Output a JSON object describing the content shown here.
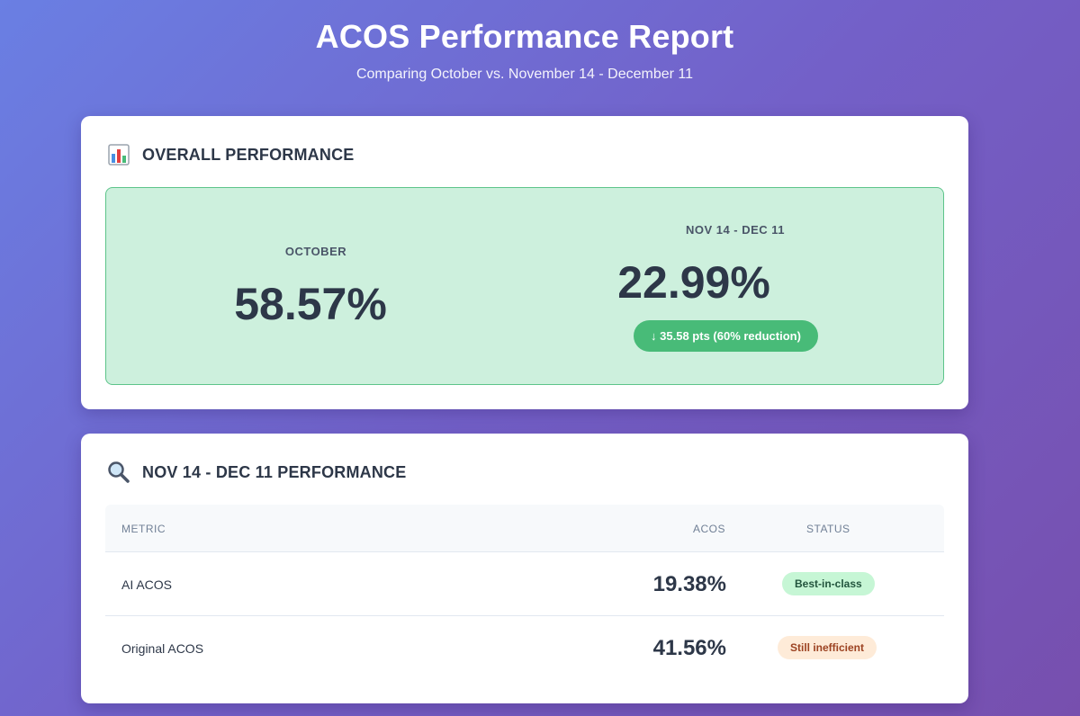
{
  "header": {
    "title": "ACOS Performance Report",
    "subtitle": "Comparing October vs. November 14 - December 11"
  },
  "overall": {
    "icon": "bar-chart-icon",
    "title": "OVERALL PERFORMANCE",
    "left": {
      "label": "OCTOBER",
      "value": "58.57%"
    },
    "right": {
      "label": "NOV 14 - DEC 11",
      "value": "22.99%",
      "change": "↓ 35.58 pts (60% reduction)"
    }
  },
  "period": {
    "icon": "magnifying-glass-icon",
    "title": "NOV 14 - DEC 11 PERFORMANCE",
    "columns": {
      "metric": "METRIC",
      "acos": "ACOS",
      "status": "STATUS"
    },
    "rows": [
      {
        "metric": "AI ACOS",
        "acos": "19.38%",
        "status": "Best-in-class",
        "status_color": "#c6f6d5"
      },
      {
        "metric": "Original ACOS",
        "acos": "41.56%",
        "status": "Still inefficient",
        "status_color": "#feebd8"
      }
    ]
  },
  "colors": {
    "accent_green": "#48bb78",
    "panel_green": "#cdf0dd",
    "background_start": "#6a7fe3",
    "background_end": "#774fae"
  }
}
